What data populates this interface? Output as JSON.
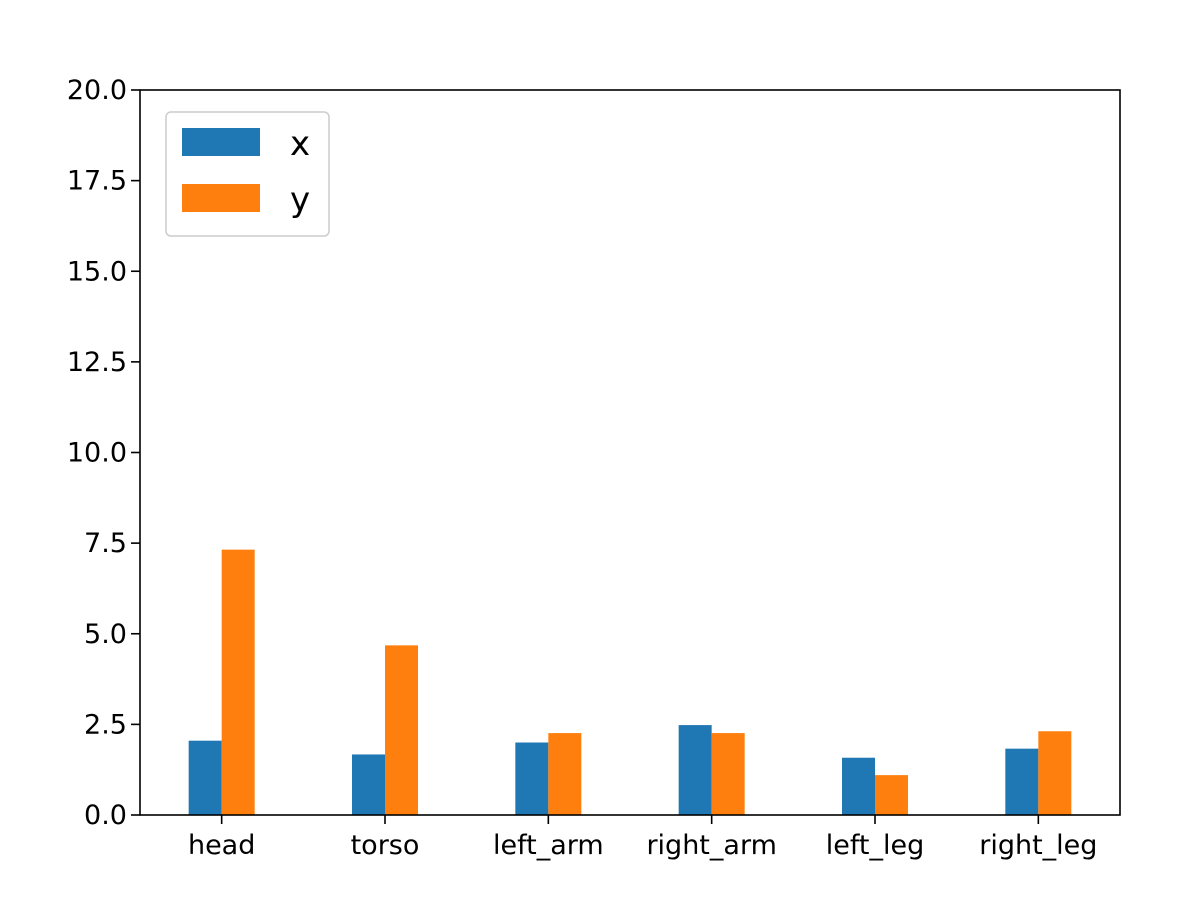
{
  "chart_data": {
    "type": "bar",
    "categories": [
      "head",
      "torso",
      "left_arm",
      "right_arm",
      "left_leg",
      "right_leg"
    ],
    "series": [
      {
        "name": "x",
        "values": [
          2.05,
          1.67,
          2.0,
          2.48,
          1.58,
          1.83
        ],
        "color": "#1f77b4"
      },
      {
        "name": "y",
        "values": [
          7.32,
          4.68,
          2.26,
          2.26,
          1.1,
          2.31
        ],
        "color": "#ff7f0e"
      }
    ],
    "y_ticks": [
      "0.0",
      "2.5",
      "5.0",
      "7.5",
      "10.0",
      "12.5",
      "15.0",
      "17.5",
      "20.0"
    ],
    "ylim": [
      0,
      20
    ],
    "legend_position": "top-left",
    "grid": false
  }
}
